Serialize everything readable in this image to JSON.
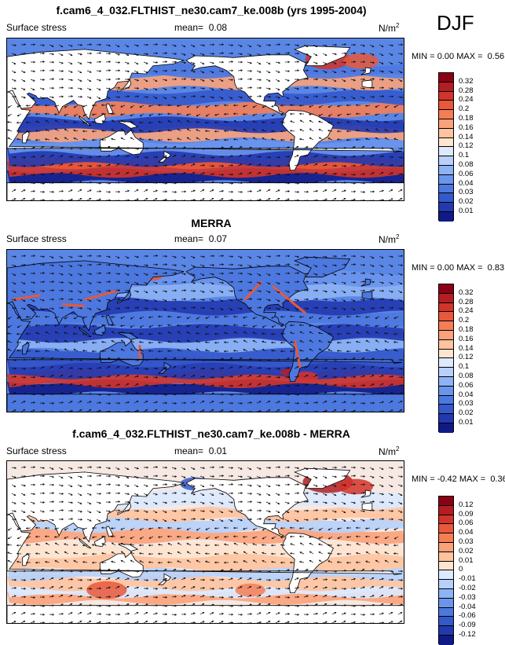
{
  "season": "DJF",
  "colors": {
    "pos_ramp": [
      "#ffe4cf",
      "#ffc3a0",
      "#fba27a",
      "#f47e56",
      "#e8583a",
      "#d3342a",
      "#b41e23",
      "#8c0014"
    ],
    "neg_ramp": [
      "#dce9ff",
      "#b7d0fb",
      "#8db2f5",
      "#6a95ec",
      "#4c78df",
      "#3459cc",
      "#2239b0",
      "#101a86"
    ],
    "neutral": "#f4f4ff",
    "land": "#ffffff"
  },
  "panels": [
    {
      "title": "f.cam6_4_032.FLTHIST_ne30.cam7_ke.008b (yrs 1995-2004)",
      "variable": "Surface stress",
      "mean_label": "mean=",
      "mean": "0.08",
      "units_base": "N/m",
      "units_exp": "2",
      "min_label": "MIN =",
      "min": "0.00",
      "max_label": "MAX =",
      "max": "0.56",
      "colorbar": [
        "0.32",
        "0.28",
        "0.24",
        "0.2",
        "0.18",
        "0.16",
        "0.14",
        "0.12",
        "0.1",
        "0.08",
        "0.06",
        "0.04",
        "0.03",
        "0.02",
        "0.01"
      ],
      "field_type": "model"
    },
    {
      "title": "MERRA",
      "variable": "Surface stress",
      "mean_label": "mean=",
      "mean": "0.07",
      "units_base": "N/m",
      "units_exp": "2",
      "min_label": "MIN =",
      "min": "0.00",
      "max_label": "MAX =",
      "max": "0.83",
      "colorbar": [
        "0.32",
        "0.28",
        "0.24",
        "0.2",
        "0.18",
        "0.16",
        "0.14",
        "0.12",
        "0.1",
        "0.08",
        "0.06",
        "0.04",
        "0.03",
        "0.02",
        "0.01"
      ],
      "field_type": "obs"
    },
    {
      "title": "f.cam6_4_032.FLTHIST_ne30.cam7_ke.008b - MERRA",
      "variable": "Surface stress",
      "mean_label": "mean=",
      "mean": "0.01",
      "units_base": "N/m",
      "units_exp": "2",
      "min_label": "MIN =",
      "min": "-0.42",
      "max_label": "MAX =",
      "max": "0.36",
      "colorbar": [
        "0.12",
        "0.09",
        "0.06",
        "0.04",
        "0.03",
        "0.02",
        "0.01",
        "0",
        "-0.01",
        "-0.02",
        "-0.03",
        "-0.04",
        "-0.06",
        "-0.09",
        "-0.12"
      ],
      "field_type": "diff"
    }
  ]
}
